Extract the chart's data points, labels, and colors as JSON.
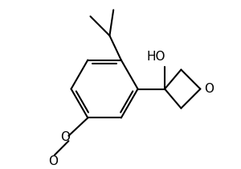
{
  "background_color": "#ffffff",
  "line_color": "#000000",
  "line_width": 1.5,
  "font_size": 11,
  "fig_width": 3.0,
  "fig_height": 2.1,
  "dpi": 100,
  "xlim": [
    -1.4,
    1.6
  ],
  "ylim": [
    -1.1,
    1.3
  ]
}
